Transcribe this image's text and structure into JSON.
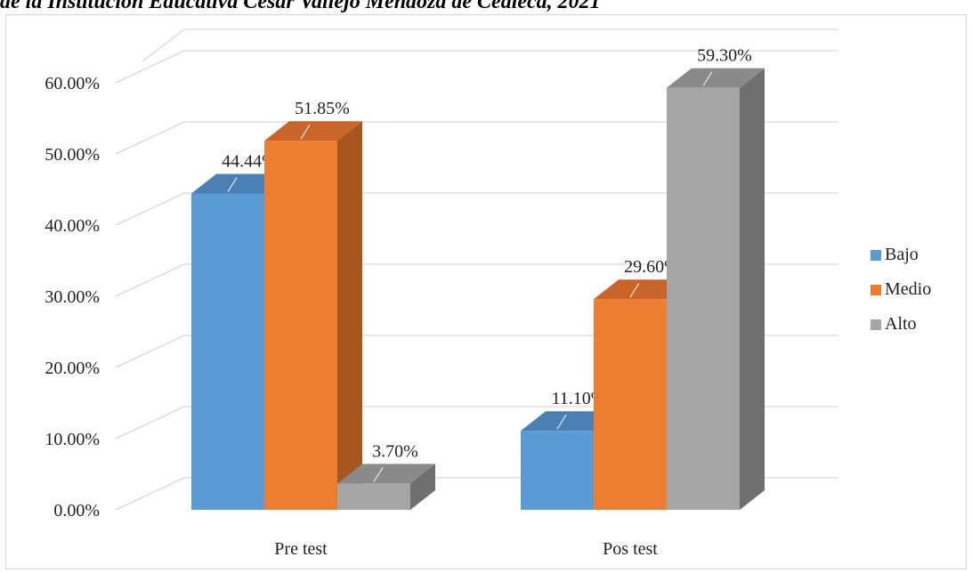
{
  "caption": "de la Institución Educativa César Vallejo Mendoza de Cealeca, 2021",
  "chart_data": {
    "type": "bar",
    "three_d": true,
    "categories": [
      "Pre test",
      "Pos test"
    ],
    "series": [
      {
        "name": "Bajo",
        "values": [
          44.44,
          11.1
        ],
        "labels": [
          "44.44%",
          "11.10%"
        ],
        "color": "#5b9bd5",
        "top": "#4a80b3",
        "side": "#41719c"
      },
      {
        "name": "Medio",
        "values": [
          51.85,
          29.6
        ],
        "labels": [
          "51.85%",
          "29.60%"
        ],
        "color": "#ed7d31",
        "top": "#c9642a",
        "side": "#a7561f"
      },
      {
        "name": "Alto",
        "values": [
          3.7,
          59.3
        ],
        "labels": [
          "3.70%",
          "59.30%"
        ],
        "color": "#a5a5a5",
        "top": "#8a8a8a",
        "side": "#6f6f6f"
      }
    ],
    "ylim": [
      0,
      60
    ],
    "yticks": [
      "0.00%",
      "10.00%",
      "20.00%",
      "30.00%",
      "40.00%",
      "50.00%",
      "60.00%"
    ],
    "grid": true,
    "legend_position": "right"
  }
}
